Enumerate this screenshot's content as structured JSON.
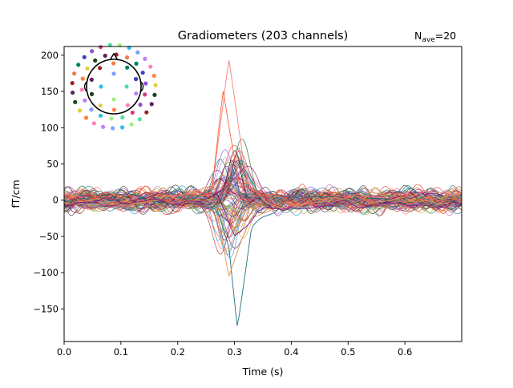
{
  "chart_data": {
    "type": "line",
    "title": "Gradiometers (203 channels)",
    "nave_label": {
      "base": "N",
      "sub": "ave",
      "value": "=20"
    },
    "xlabel": "Time (s)",
    "ylabel": "fT/cm",
    "xlim": [
      0.0,
      0.7
    ],
    "ylim": [
      -195,
      212
    ],
    "xticks": [
      0.0,
      0.1,
      0.2,
      0.3,
      0.4,
      0.5,
      0.6
    ],
    "xtick_labels": [
      "0.0",
      "0.1",
      "0.2",
      "0.3",
      "0.4",
      "0.5",
      "0.6"
    ],
    "yticks": [
      -150,
      -100,
      -50,
      0,
      50,
      100,
      150,
      200
    ],
    "ytick_labels": [
      "−150",
      "−100",
      "−50",
      "0",
      "50",
      "100",
      "150",
      "200"
    ],
    "grid": false,
    "legend": "sensor-layout inset, top-left",
    "n_channels": 203,
    "time_range": [
      0.0,
      0.7
    ],
    "baseline_noise_amplitude": 15,
    "peak_response": {
      "time": 0.3,
      "max": 195,
      "min": -175
    },
    "series": [
      {
        "color": "#fa8072",
        "values": [
          [
            0.0,
            3
          ],
          [
            0.1,
            -5
          ],
          [
            0.2,
            4
          ],
          [
            0.26,
            20
          ],
          [
            0.29,
            195
          ],
          [
            0.32,
            30
          ],
          [
            0.36,
            -10
          ],
          [
            0.5,
            5
          ],
          [
            0.7,
            10
          ]
        ]
      },
      {
        "color": "#20707a",
        "values": [
          [
            0.0,
            -2
          ],
          [
            0.1,
            4
          ],
          [
            0.2,
            -3
          ],
          [
            0.26,
            10
          ],
          [
            0.29,
            -60
          ],
          [
            0.305,
            -175
          ],
          [
            0.33,
            -40
          ],
          [
            0.4,
            5
          ],
          [
            0.7,
            -5
          ]
        ]
      },
      {
        "color": "#ff6040",
        "values": [
          [
            0.0,
            5
          ],
          [
            0.1,
            2
          ],
          [
            0.2,
            0
          ],
          [
            0.26,
            10
          ],
          [
            0.28,
            150
          ],
          [
            0.31,
            20
          ],
          [
            0.4,
            -5
          ],
          [
            0.7,
            0
          ]
        ]
      },
      {
        "color": "#e8944a",
        "values": [
          [
            0.0,
            0
          ],
          [
            0.1,
            -3
          ],
          [
            0.2,
            2
          ],
          [
            0.265,
            0
          ],
          [
            0.29,
            -105
          ],
          [
            0.33,
            -20
          ],
          [
            0.45,
            3
          ],
          [
            0.7,
            -3
          ]
        ]
      },
      {
        "color": "#7a1a8a",
        "values": [
          [
            0.0,
            -5
          ],
          [
            0.1,
            0
          ],
          [
            0.2,
            -4
          ],
          [
            0.27,
            5
          ],
          [
            0.3,
            -50
          ],
          [
            0.34,
            -15
          ],
          [
            0.5,
            -5
          ],
          [
            0.7,
            -8
          ]
        ]
      }
    ],
    "channel_colors": [
      "#fa8072",
      "#ff6040",
      "#e8402c",
      "#c0303a",
      "#9a1060",
      "#7a1a8a",
      "#5a2aa0",
      "#8060d0",
      "#20707a",
      "#1a6a40",
      "#208090",
      "#3a9ad0",
      "#e8944a",
      "#d0b030",
      "#b0b040",
      "#60c060",
      "#404040",
      "#701020",
      "#d070c0",
      "#a0a0e0"
    ],
    "sensor_layout": {
      "colors": [
        "#50e0a0",
        "#a0f080",
        "#30c0e0",
        "#80a0ff",
        "#c080ff",
        "#ff80c0",
        "#ff8040",
        "#e0d040",
        "#204020",
        "#602060",
        "#a02020",
        "#f08040",
        "#008060",
        "#4040c0",
        "#9050d0",
        "#d04080"
      ]
    }
  }
}
